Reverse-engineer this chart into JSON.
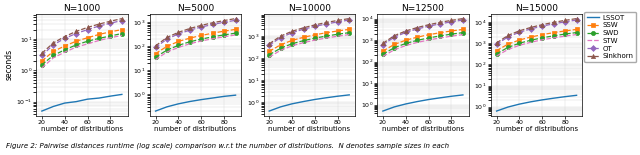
{
  "panels": [
    {
      "title": "N=1000",
      "N": 1000
    },
    {
      "title": "N=5000",
      "N": 5000
    },
    {
      "title": "N=10000",
      "N": 10000
    },
    {
      "title": "N=12500",
      "N": 12500
    },
    {
      "title": "N=15000",
      "N": 15000
    }
  ],
  "x": [
    20,
    30,
    40,
    50,
    60,
    70,
    80,
    90
  ],
  "series": {
    "LSSOT": {
      "color": "#1f77b4",
      "linestyle": "-",
      "marker": null,
      "zorder": 3,
      "lw": 1.0
    },
    "SSW": {
      "color": "#ff7f0e",
      "linestyle": "--",
      "marker": "s",
      "zorder": 2,
      "lw": 0.9
    },
    "SWD": {
      "color": "#2ca02c",
      "linestyle": "--",
      "marker": "o",
      "zorder": 2,
      "lw": 0.9
    },
    "STW": {
      "color": "#e377c2",
      "linestyle": "--",
      "marker": null,
      "zorder": 2,
      "lw": 0.9
    },
    "OT": {
      "color": "#9467bd",
      "linestyle": "--",
      "marker": "D",
      "zorder": 2,
      "lw": 0.9
    },
    "Sinkhorn": {
      "color": "#8c564b",
      "linestyle": "--",
      "marker": "^",
      "zorder": 2,
      "lw": 0.9
    }
  },
  "data": {
    "1000": {
      "LSSOT": [
        0.05,
        0.07,
        0.09,
        0.1,
        0.12,
        0.13,
        0.15,
        0.17
      ],
      "SSW": [
        2.0,
        4.0,
        6.0,
        8.5,
        11.0,
        14.0,
        17.0,
        20.0
      ],
      "SWD": [
        1.5,
        3.0,
        4.5,
        6.5,
        8.5,
        10.5,
        12.5,
        15.0
      ],
      "STW": [
        1.2,
        2.5,
        3.8,
        5.5,
        7.0,
        9.0,
        11.0,
        13.0
      ],
      "OT": [
        3.0,
        6.5,
        10.5,
        15.0,
        20.0,
        26.0,
        32.0,
        39.0
      ],
      "Sinkhorn": [
        3.5,
        7.5,
        12.0,
        17.5,
        23.5,
        30.0,
        37.0,
        45.0
      ]
    },
    "5000": {
      "LSSOT": [
        0.2,
        0.3,
        0.4,
        0.5,
        0.6,
        0.7,
        0.82,
        0.92
      ],
      "SSW": [
        50.0,
        100.0,
        160.0,
        220.0,
        285.0,
        355.0,
        430.0,
        510.0
      ],
      "SWD": [
        35.0,
        70.0,
        110.0,
        155.0,
        200.0,
        250.0,
        300.0,
        355.0
      ],
      "STW": [
        28.0,
        58.0,
        90.0,
        128.0,
        167.0,
        208.0,
        252.0,
        298.0
      ],
      "OT": [
        90.0,
        200.0,
        330.0,
        475.0,
        640.0,
        820.0,
        1010.0,
        1220.0
      ],
      "Sinkhorn": [
        105.0,
        235.0,
        385.0,
        555.0,
        750.0,
        965.0,
        1190.0,
        1440.0
      ]
    },
    "10000": {
      "LSSOT": [
        0.4,
        0.62,
        0.85,
        1.08,
        1.34,
        1.6,
        1.88,
        2.16
      ],
      "SSW": [
        200.0,
        400.0,
        630.0,
        870.0,
        1130.0,
        1400.0,
        1690.0,
        1990.0
      ],
      "SWD": [
        140.0,
        280.0,
        445.0,
        615.0,
        800.0,
        995.0,
        1200.0,
        1415.0
      ],
      "STW": [
        110.0,
        225.0,
        360.0,
        500.0,
        650.0,
        810.0,
        980.0,
        1155.0
      ],
      "OT": [
        380.0,
        850.0,
        1400.0,
        2020.0,
        2720.0,
        3500.0,
        4340.0,
        5260.0
      ],
      "Sinkhorn": [
        440.0,
        990.0,
        1630.0,
        2350.0,
        3170.0,
        4080.0,
        5060.0,
        6130.0
      ]
    },
    "12500": {
      "LSSOT": [
        0.5,
        0.78,
        1.07,
        1.38,
        1.72,
        2.06,
        2.44,
        2.82
      ],
      "SSW": [
        310.0,
        630.0,
        990.0,
        1370.0,
        1780.0,
        2210.0,
        2670.0,
        3150.0
      ],
      "SWD": [
        220.0,
        445.0,
        700.0,
        975.0,
        1265.0,
        1570.0,
        1900.0,
        2240.0
      ],
      "STW": [
        175.0,
        355.0,
        560.0,
        780.0,
        1015.0,
        1260.0,
        1525.0,
        1800.0
      ],
      "OT": [
        610.0,
        1380.0,
        2280.0,
        3300.0,
        4450.0,
        5730.0,
        7110.0,
        8620.0
      ],
      "Sinkhorn": [
        710.0,
        1610.0,
        2660.0,
        3850.0,
        5200.0,
        6700.0,
        8310.0,
        10070.0
      ]
    },
    "15000": {
      "LSSOT": [
        0.62,
        0.96,
        1.32,
        1.7,
        2.1,
        2.52,
        2.98,
        3.45
      ],
      "SSW": [
        450.0,
        910.0,
        1430.0,
        1980.0,
        2570.0,
        3190.0,
        3850.0,
        4550.0
      ],
      "SWD": [
        315.0,
        640.0,
        1010.0,
        1400.0,
        1820.0,
        2265.0,
        2735.0,
        3230.0
      ],
      "STW": [
        250.0,
        510.0,
        805.0,
        1120.0,
        1460.0,
        1815.0,
        2195.0,
        2592.0
      ],
      "OT": [
        890.0,
        2010.0,
        3330.0,
        4820.0,
        6500.0,
        8380.0,
        10400.0,
        12600.0
      ],
      "Sinkhorn": [
        1040.0,
        2360.0,
        3900.0,
        5650.0,
        7620.0,
        9830.0,
        12200.0,
        14800.0
      ]
    }
  },
  "legend_order": [
    "LSSOT",
    "SSW",
    "SWD",
    "STW",
    "OT",
    "Sinkhorn"
  ],
  "ylabel": "seconds",
  "xlabel": "number of distributions",
  "figsize": [
    6.4,
    1.55
  ],
  "dpi": 100,
  "caption": "Figure 2: Pairwise distances runtime (log scale) comparison w.r.t the number of distributions.  N denotes sample sizes in each"
}
